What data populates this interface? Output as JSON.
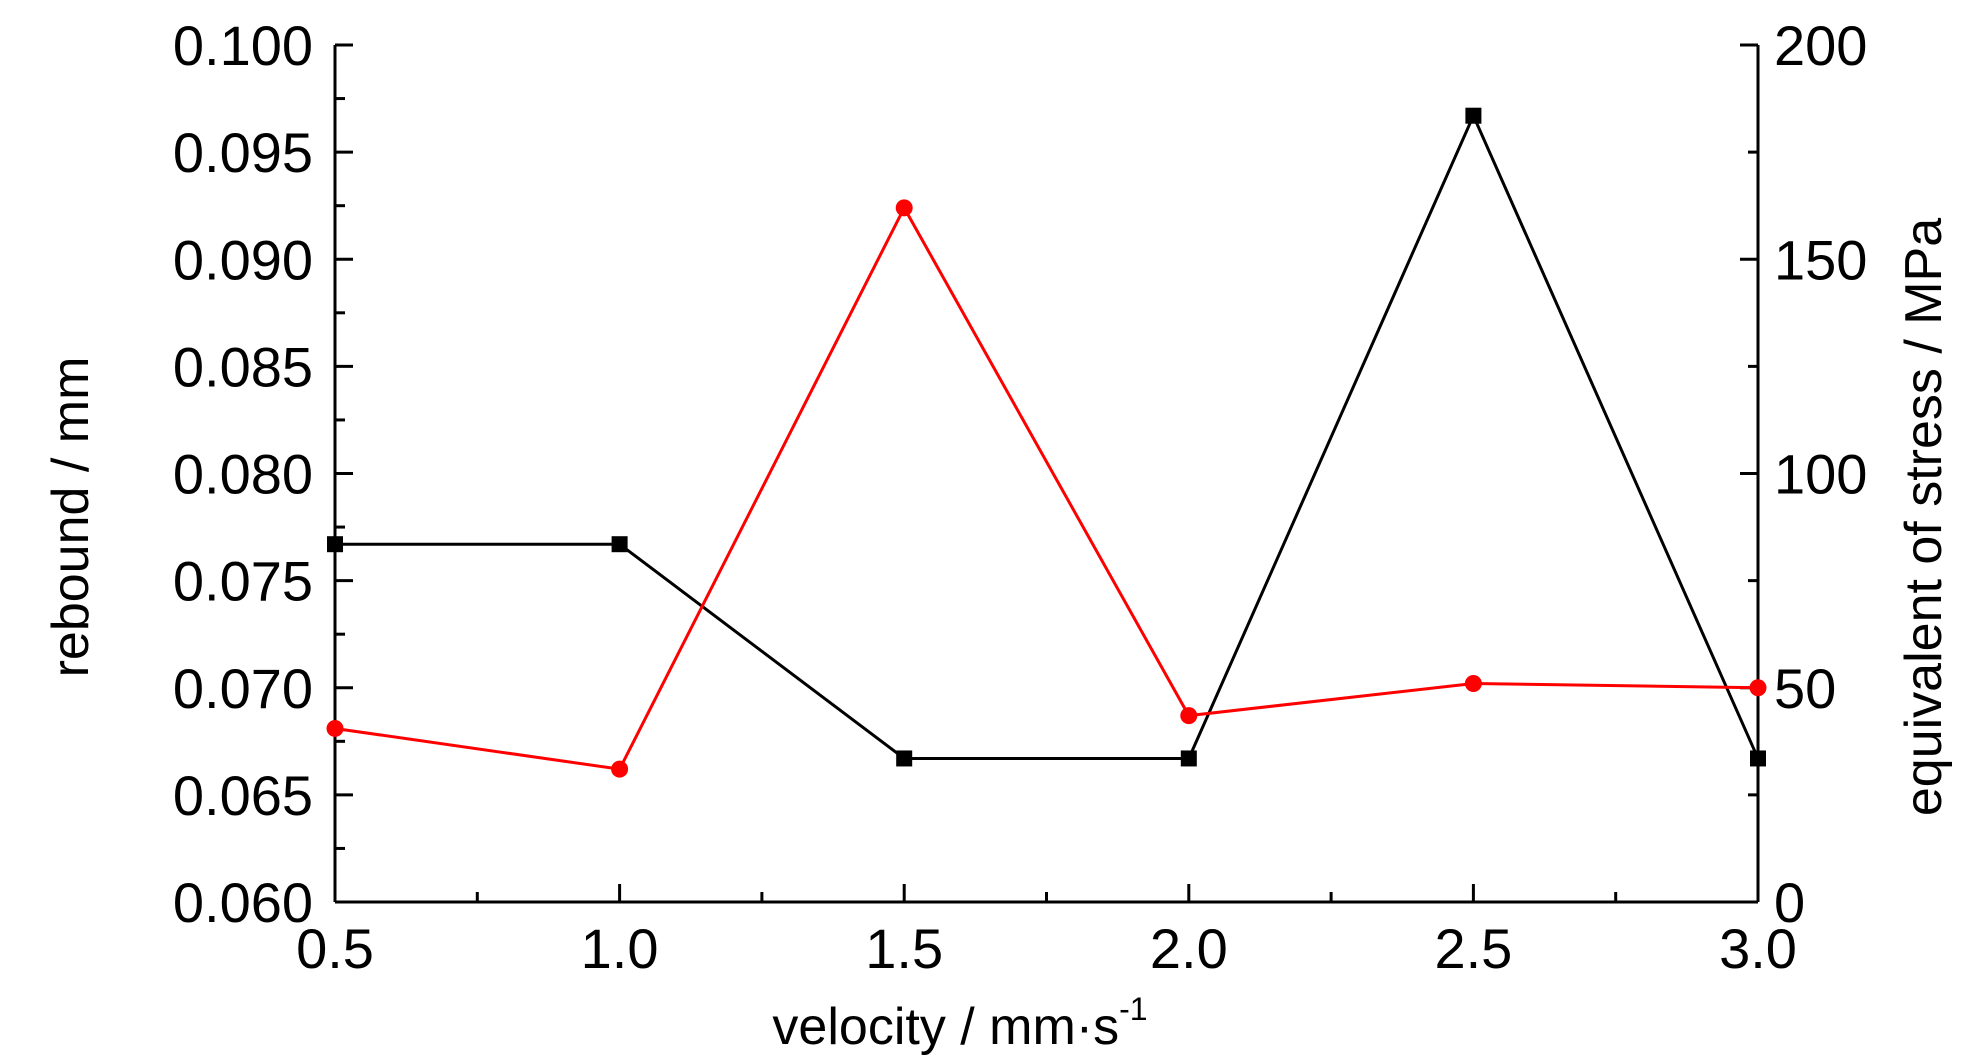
{
  "chart_data": {
    "type": "line",
    "xlabel": "velocity / mm·s",
    "xlabel_superscript": "-1",
    "ylabel_left": "rebound / mm",
    "ylabel_right": "equivalent of stress / MPa",
    "xlim": [
      0.5,
      3.0
    ],
    "ylim_left": [
      0.06,
      0.1
    ],
    "ylim_right": [
      0,
      200
    ],
    "x_ticks": [
      "0.5",
      "1.0",
      "1.5",
      "2.0",
      "2.5",
      "3.0"
    ],
    "y_left_ticks": [
      "0.060",
      "0.065",
      "0.070",
      "0.075",
      "0.080",
      "0.085",
      "0.090",
      "0.095",
      "0.100"
    ],
    "y_right_ticks": [
      "0",
      "50",
      "100",
      "150",
      "200"
    ],
    "grid": false,
    "legend": "none",
    "series": [
      {
        "axis": "left",
        "marker": "square",
        "color": "#000000",
        "x": [
          0.5,
          1.0,
          1.5,
          2.0,
          2.5,
          3.0
        ],
        "y": [
          0.0767,
          0.0767,
          0.0667,
          0.0667,
          0.0967,
          0.0667
        ]
      },
      {
        "axis": "right",
        "marker": "circle",
        "color": "#ff0000",
        "x": [
          0.5,
          1.0,
          1.5,
          2.0,
          2.5,
          3.0
        ],
        "y": [
          40.5,
          31.0,
          162.0,
          43.5,
          51.0,
          50.0
        ]
      }
    ]
  }
}
